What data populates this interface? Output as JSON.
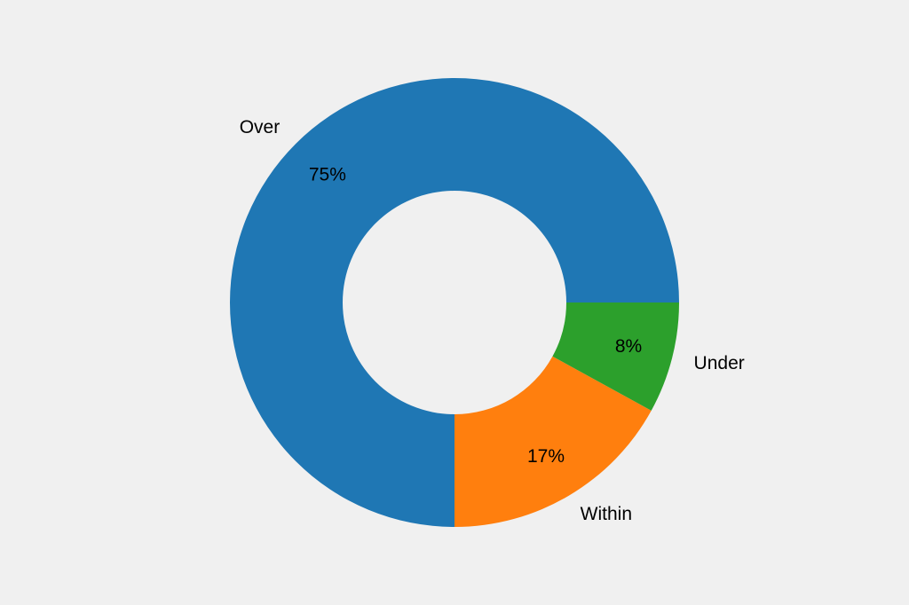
{
  "chart_data": {
    "type": "pie",
    "donut": true,
    "start_angle_deg": 0,
    "direction": "counterclockwise",
    "categories": [
      "Over",
      "Within",
      "Under"
    ],
    "values": [
      75,
      17,
      8
    ],
    "pct_labels": [
      "75%",
      "17%",
      "8%"
    ],
    "colors": [
      "#1f77b4",
      "#ff7f0e",
      "#2ca02c"
    ],
    "background": "#f0f0f0",
    "title": ""
  }
}
